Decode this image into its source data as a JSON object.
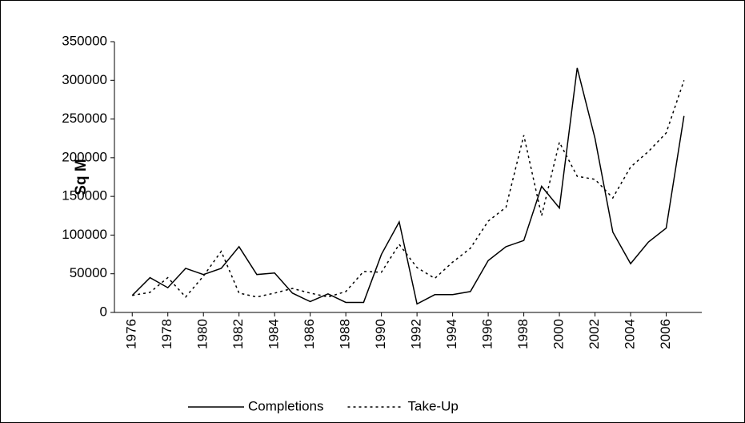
{
  "chart_data": {
    "type": "line",
    "y_label": "Sq M",
    "x": [
      1976,
      1977,
      1978,
      1979,
      1980,
      1981,
      1982,
      1983,
      1984,
      1985,
      1986,
      1987,
      1988,
      1989,
      1990,
      1991,
      1992,
      1993,
      1994,
      1995,
      1996,
      1997,
      1998,
      1999,
      2000,
      2001,
      2002,
      2003,
      2004,
      2005,
      2006,
      2007
    ],
    "series": [
      {
        "name": "Completions",
        "color": "#000000",
        "dash": "solid",
        "values": [
          22000,
          45000,
          32000,
          57000,
          49000,
          57000,
          85000,
          49000,
          51000,
          25000,
          14000,
          24000,
          13000,
          13000,
          75000,
          117000,
          11000,
          23000,
          23000,
          27000,
          67000,
          85000,
          93000,
          163000,
          135000,
          316000,
          225000,
          104000,
          63000,
          91000,
          109000,
          254000
        ]
      },
      {
        "name": "Take-Up",
        "color": "#000000",
        "dash": "dotted",
        "values": [
          22000,
          26000,
          45000,
          20000,
          47000,
          79000,
          25000,
          20000,
          25000,
          31000,
          25000,
          20000,
          27000,
          53000,
          52000,
          88000,
          58000,
          44000,
          65000,
          83000,
          118000,
          136000,
          229000,
          125000,
          220000,
          176000,
          172000,
          148000,
          188000,
          208000,
          232000,
          300000
        ]
      }
    ],
    "xlim": [
      1975,
      2008
    ],
    "xticks": [
      1976,
      1978,
      1980,
      1982,
      1984,
      1986,
      1988,
      1990,
      1992,
      1994,
      1996,
      1998,
      2000,
      2002,
      2004,
      2006
    ],
    "ylim": [
      0,
      350000
    ],
    "yticks": [
      0,
      50000,
      100000,
      150000,
      200000,
      250000,
      300000,
      350000
    ],
    "grid": false,
    "legend": "bottom"
  }
}
